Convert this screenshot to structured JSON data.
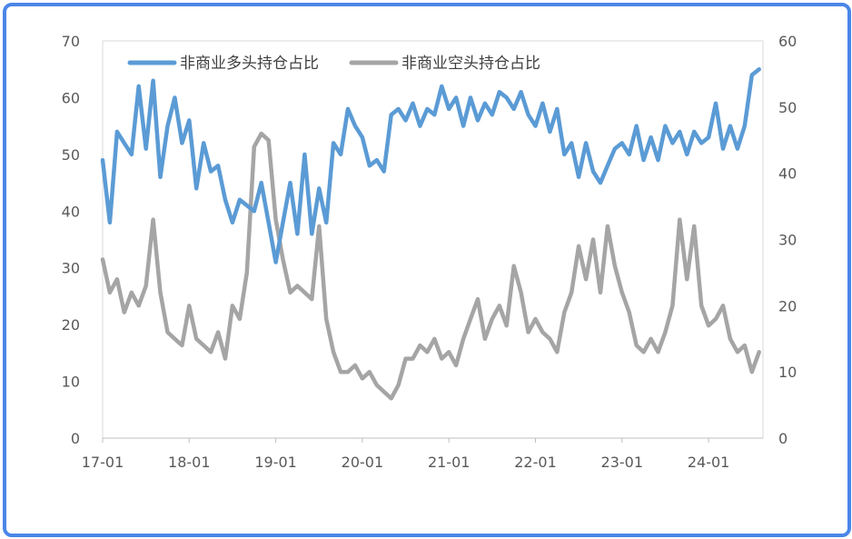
{
  "chart_data": {
    "type": "line",
    "title": "",
    "xlabel": "",
    "ylabel": "",
    "x_tick_labels": [
      "17-01",
      "18-01",
      "19-01",
      "20-01",
      "21-01",
      "22-01",
      "23-01",
      "24-01"
    ],
    "y_left": {
      "ylim": [
        0,
        70
      ],
      "ticks": [
        0,
        10,
        20,
        30,
        40,
        50,
        60,
        70
      ]
    },
    "y_right": {
      "ylim": [
        0,
        60
      ],
      "ticks": [
        0,
        10,
        20,
        30,
        40,
        50,
        60
      ]
    },
    "legend_position": "top",
    "grid": false,
    "series": [
      {
        "name": "非商业多头持仓占比",
        "axis": "left",
        "color": "#5b9bd5",
        "x": [
          "2017-01",
          "2017-02",
          "2017-03",
          "2017-04",
          "2017-05",
          "2017-06",
          "2017-07",
          "2017-08",
          "2017-09",
          "2017-10",
          "2017-11",
          "2017-12",
          "2018-01",
          "2018-02",
          "2018-03",
          "2018-04",
          "2018-05",
          "2018-06",
          "2018-07",
          "2018-08",
          "2018-09",
          "2018-10",
          "2018-11",
          "2018-12",
          "2019-01",
          "2019-02",
          "2019-03",
          "2019-04",
          "2019-05",
          "2019-06",
          "2019-07",
          "2019-08",
          "2019-09",
          "2019-10",
          "2019-11",
          "2019-12",
          "2020-01",
          "2020-02",
          "2020-03",
          "2020-04",
          "2020-05",
          "2020-06",
          "2020-07",
          "2020-08",
          "2020-09",
          "2020-10",
          "2020-11",
          "2020-12",
          "2021-01",
          "2021-02",
          "2021-03",
          "2021-04",
          "2021-05",
          "2021-06",
          "2021-07",
          "2021-08",
          "2021-09",
          "2021-10",
          "2021-11",
          "2021-12",
          "2022-01",
          "2022-02",
          "2022-03",
          "2022-04",
          "2022-05",
          "2022-06",
          "2022-07",
          "2022-08",
          "2022-09",
          "2022-10",
          "2022-11",
          "2022-12",
          "2023-01",
          "2023-02",
          "2023-03",
          "2023-04",
          "2023-05",
          "2023-06",
          "2023-07",
          "2023-08",
          "2023-09",
          "2023-10",
          "2023-11",
          "2023-12",
          "2024-01",
          "2024-02",
          "2024-03",
          "2024-04",
          "2024-05",
          "2024-06",
          "2024-07",
          "2024-08"
        ],
        "values": [
          49,
          38,
          54,
          52,
          50,
          62,
          51,
          63,
          46,
          55,
          60,
          52,
          56,
          44,
          52,
          47,
          48,
          42,
          38,
          42,
          41,
          40,
          45,
          38,
          31,
          38,
          45,
          36,
          50,
          36,
          44,
          38,
          52,
          50,
          58,
          55,
          53,
          48,
          49,
          47,
          57,
          58,
          56,
          59,
          55,
          58,
          57,
          62,
          58,
          60,
          55,
          60,
          56,
          59,
          57,
          61,
          60,
          58,
          61,
          57,
          55,
          59,
          54,
          58,
          50,
          52,
          46,
          52,
          47,
          45,
          48,
          51,
          52,
          50,
          55,
          49,
          53,
          49,
          55,
          52,
          54,
          50,
          54,
          52,
          53,
          59,
          51,
          55,
          51,
          55,
          64,
          65
        ]
      },
      {
        "name": "非商业空头持仓占比",
        "axis": "right",
        "color": "#a5a5a5",
        "x": [
          "2017-01",
          "2017-02",
          "2017-03",
          "2017-04",
          "2017-05",
          "2017-06",
          "2017-07",
          "2017-08",
          "2017-09",
          "2017-10",
          "2017-11",
          "2017-12",
          "2018-01",
          "2018-02",
          "2018-03",
          "2018-04",
          "2018-05",
          "2018-06",
          "2018-07",
          "2018-08",
          "2018-09",
          "2018-10",
          "2018-11",
          "2018-12",
          "2019-01",
          "2019-02",
          "2019-03",
          "2019-04",
          "2019-05",
          "2019-06",
          "2019-07",
          "2019-08",
          "2019-09",
          "2019-10",
          "2019-11",
          "2019-12",
          "2020-01",
          "2020-02",
          "2020-03",
          "2020-04",
          "2020-05",
          "2020-06",
          "2020-07",
          "2020-08",
          "2020-09",
          "2020-10",
          "2020-11",
          "2020-12",
          "2021-01",
          "2021-02",
          "2021-03",
          "2021-04",
          "2021-05",
          "2021-06",
          "2021-07",
          "2021-08",
          "2021-09",
          "2021-10",
          "2021-11",
          "2021-12",
          "2022-01",
          "2022-02",
          "2022-03",
          "2022-04",
          "2022-05",
          "2022-06",
          "2022-07",
          "2022-08",
          "2022-09",
          "2022-10",
          "2022-11",
          "2022-12",
          "2023-01",
          "2023-02",
          "2023-03",
          "2023-04",
          "2023-05",
          "2023-06",
          "2023-07",
          "2023-08",
          "2023-09",
          "2023-10",
          "2023-11",
          "2023-12",
          "2024-01",
          "2024-02",
          "2024-03",
          "2024-04",
          "2024-05",
          "2024-06",
          "2024-07",
          "2024-08"
        ],
        "values": [
          27,
          22,
          24,
          19,
          22,
          20,
          23,
          33,
          22,
          16,
          15,
          14,
          20,
          15,
          14,
          13,
          16,
          12,
          20,
          18,
          25,
          44,
          46,
          45,
          33,
          27,
          22,
          23,
          22,
          21,
          32,
          18,
          13,
          10,
          10,
          11,
          9,
          10,
          8,
          7,
          6,
          8,
          12,
          12,
          14,
          13,
          15,
          12,
          13,
          11,
          15,
          18,
          21,
          15,
          18,
          20,
          17,
          26,
          22,
          16,
          18,
          16,
          15,
          13,
          19,
          22,
          29,
          24,
          30,
          22,
          32,
          26,
          22,
          19,
          14,
          13,
          15,
          13,
          16,
          20,
          33,
          24,
          32,
          20,
          17,
          18,
          20,
          15,
          13,
          14,
          10,
          13
        ]
      }
    ]
  }
}
